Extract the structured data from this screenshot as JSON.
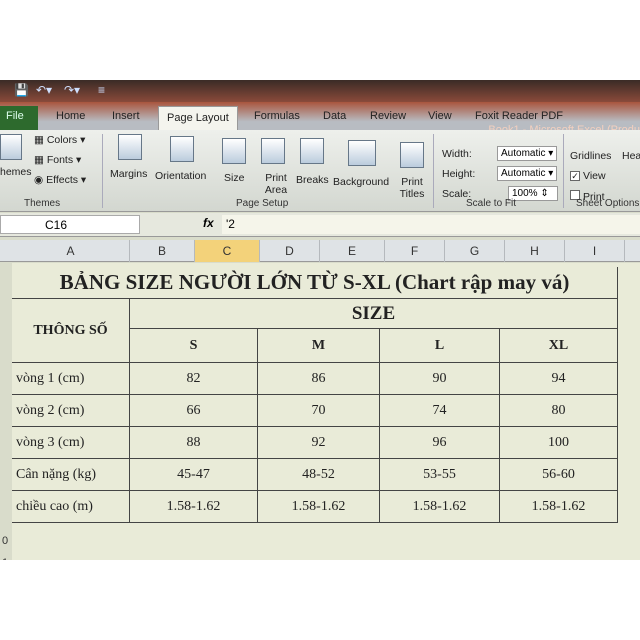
{
  "window": {
    "title": "Book1 - Microsoft Excel (Produ"
  },
  "tabs": [
    "File",
    "Home",
    "Insert",
    "Page Layout",
    "Formulas",
    "Data",
    "Review",
    "View",
    "Foxit Reader PDF"
  ],
  "ribbon": {
    "themes": {
      "label": "hemes",
      "colors": "Colors",
      "fonts": "Fonts",
      "effects": "Effects",
      "group": "Themes"
    },
    "page_setup": {
      "margins": "Margins",
      "orientation": "Orientation",
      "size": "Size",
      "print_area": "Print Area",
      "breaks": "Breaks",
      "background": "Background",
      "print_titles": "Print Titles",
      "group": "Page Setup"
    },
    "scale_to_fit": {
      "width_label": "Width:",
      "width_value": "Automatic",
      "height_label": "Height:",
      "height_value": "Automatic",
      "scale_label": "Scale:",
      "scale_value": "100%",
      "group": "Scale to Fit"
    },
    "sheet_options": {
      "gridlines": "Gridlines",
      "headings": "Hea",
      "view": "View",
      "print": "Print",
      "gridlines_view": true,
      "gridlines_print": false,
      "group": "Sheet Options"
    }
  },
  "formula_bar": {
    "name_box": "C16",
    "fx": "fx",
    "value": "'2"
  },
  "columns": [
    "A",
    "B",
    "C",
    "D",
    "E",
    "F",
    "G",
    "H",
    "I"
  ],
  "selected_column": "C",
  "row_numbers": [
    "0",
    "1"
  ],
  "sheet": {
    "title": "BẢNG SIZE NGƯỜI LỚN TỪ S-XL (Chart rập may vá)",
    "param_header": "THÔNG SỐ",
    "size_header": "SIZE",
    "sizes": [
      "S",
      "M",
      "L",
      "XL"
    ],
    "rows": [
      {
        "label": "vòng 1 (cm)",
        "values": [
          "82",
          "86",
          "90",
          "94"
        ]
      },
      {
        "label": "vòng 2 (cm)",
        "values": [
          "66",
          "70",
          "74",
          "80"
        ]
      },
      {
        "label": "vòng 3 (cm)",
        "values": [
          "88",
          "92",
          "96",
          "100"
        ]
      },
      {
        "label": "Cân nặng (kg)",
        "values": [
          "45-47",
          "48-52",
          "53-55",
          "56-60"
        ]
      },
      {
        "label": "chiều cao (m)",
        "values": [
          "1.58-1.62",
          "1.58-1.62",
          "1.58-1.62",
          "1.58-1.62"
        ]
      }
    ]
  }
}
